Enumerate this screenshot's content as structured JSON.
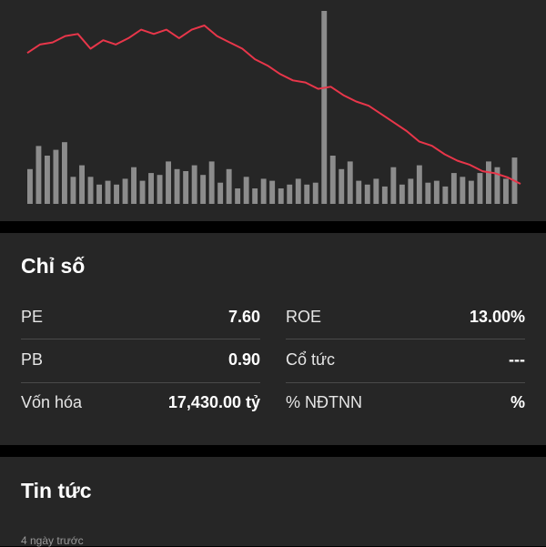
{
  "chart_data": {
    "type": "line+bar",
    "line": [
      62,
      66,
      67,
      70,
      71,
      64,
      68,
      66,
      69,
      73,
      71,
      73,
      69,
      73,
      75,
      70,
      67,
      64,
      59,
      56,
      52,
      49,
      48,
      45,
      46,
      42,
      39,
      37,
      33,
      29,
      25,
      20,
      18,
      14,
      11,
      9,
      6,
      5,
      3,
      0
    ],
    "bars": [
      18,
      30,
      25,
      28,
      32,
      14,
      20,
      14,
      10,
      12,
      10,
      13,
      19,
      12,
      16,
      15,
      22,
      18,
      17,
      20,
      15,
      22,
      11,
      18,
      8,
      14,
      8,
      13,
      12,
      8,
      10,
      13,
      10,
      11,
      100,
      25,
      18,
      22,
      12,
      10,
      13,
      9,
      19,
      10,
      13,
      20,
      11,
      12,
      9,
      16,
      14,
      12,
      16,
      22,
      19,
      13,
      24
    ],
    "colors": {
      "line": "#e8364a",
      "bars": "#8c8c8c"
    }
  },
  "metrics": {
    "title": "Chỉ số",
    "rows": [
      {
        "left_label": "PE",
        "left_value": "7.60",
        "right_label": "ROE",
        "right_value": "13.00%"
      },
      {
        "left_label": "PB",
        "left_value": "0.90",
        "right_label": "Cổ tức",
        "right_value": "---"
      },
      {
        "left_label": "Vốn hóa",
        "left_value": "17,430.00 tỷ",
        "right_label": "% NĐTNN",
        "right_value": "%"
      }
    ]
  },
  "news": {
    "title": "Tin tức",
    "first_item_time": "4 ngày trước"
  }
}
